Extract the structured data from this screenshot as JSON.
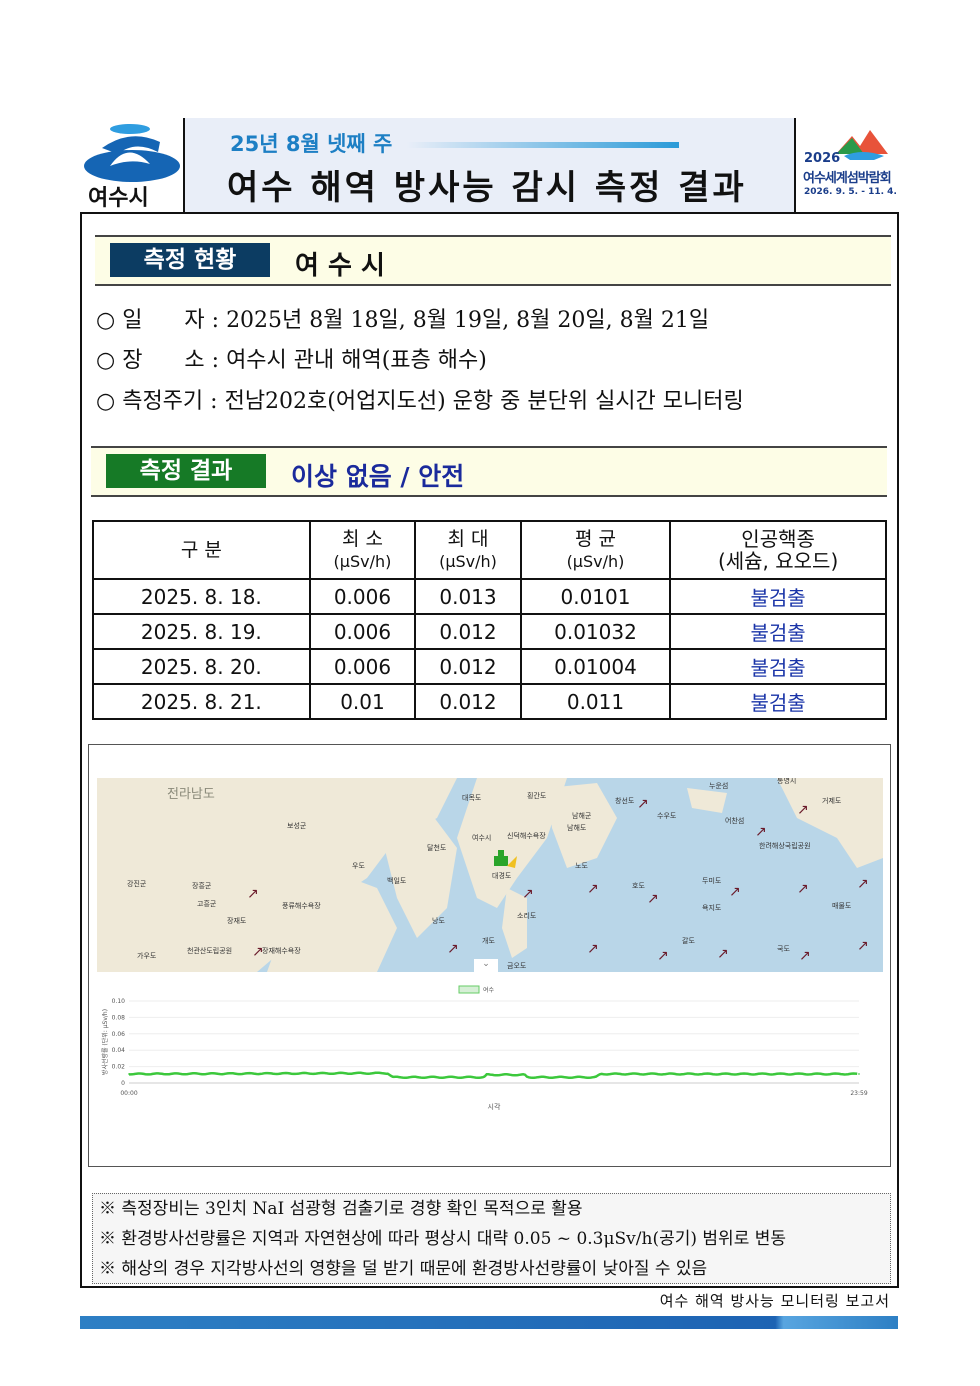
{
  "header": {
    "logo_text": "여수시",
    "subtitle": "25년 8월 넷째 주",
    "title": "여수 해역 방사능 감시 측정 결과",
    "expo_year": "2026",
    "expo_name": "여수세계섬박람회",
    "expo_dates": "2026. 9. 5. - 11. 4."
  },
  "status": {
    "label": "측정 현황",
    "city": "여 수 시",
    "items": [
      {
        "bullet": "○",
        "key": "일      자",
        "value": "2025년 8월 18일, 8월 19일, 8월 20일, 8월 21일"
      },
      {
        "bullet": "○",
        "key": "장      소",
        "value": "여수시 관내 해역(표층 해수)"
      },
      {
        "bullet": "○",
        "key": "측정주기",
        "value": "전남202호(어업지도선) 운항 중 분단위 실시간 모니터링"
      }
    ]
  },
  "result": {
    "label": "측정 결과",
    "summary": "이상 없음 / 안전"
  },
  "table": {
    "headers": [
      {
        "t": "구 분",
        "u": ""
      },
      {
        "t": "최 소",
        "u": "(μSv/h)"
      },
      {
        "t": "최 대",
        "u": "(μSv/h)"
      },
      {
        "t": "평 균",
        "u": "(μSv/h)"
      },
      {
        "t": "인공핵종",
        "u": "(세슘, 요오드)"
      }
    ],
    "rows": [
      [
        "2025. 8. 18.",
        "0.006",
        "0.013",
        "0.0101",
        "불검출"
      ],
      [
        "2025. 8. 19.",
        "0.006",
        "0.012",
        "0.01032",
        "불검출"
      ],
      [
        "2025. 8. 20.",
        "0.006",
        "0.012",
        "0.01004",
        "불검출"
      ],
      [
        "2025. 8. 21.",
        "0.01",
        "0.012",
        "0.011",
        "불검출"
      ]
    ]
  },
  "map": {
    "labels": [
      "전라남도",
      "보성군",
      "장흥군",
      "강진군",
      "고흥군",
      "우도",
      "백일도",
      "대목도",
      "여수시",
      "신덕해수욕장",
      "달천도",
      "대경도",
      "금오도",
      "남해군",
      "남해도",
      "창선도",
      "수우도",
      "노도",
      "호도",
      "두미도",
      "욕지도",
      "갈도",
      "국도",
      "거제도",
      "통영시",
      "매물도",
      "한려해상국립공원",
      "장재도",
      "가우도",
      "천관산도립공원",
      "풍류해수욕장",
      "장재해수욕장",
      "낭도",
      "개도",
      "소리도",
      "횡간도",
      "누운섬",
      "어찬섬"
    ],
    "ship_icon": "ship-icon",
    "arrow": "↗"
  },
  "chart_data": {
    "type": "line",
    "legend": [
      "여수"
    ],
    "legend_position": "top",
    "ylabel": "방사선량률 (단위: μSv/h)",
    "xlabel": "시각",
    "x_ticks": [
      "00:00",
      "23:59"
    ],
    "y_ticks": [
      "0",
      "0.02",
      "0.04",
      "0.06",
      "0.08",
      "0.10"
    ],
    "ylim": [
      0,
      0.1
    ],
    "grid": true,
    "color": "#3cc83c",
    "series": [
      {
        "name": "여수",
        "points": [
          [
            "00:00",
            0.011
          ],
          [
            "08:30",
            0.012
          ],
          [
            "08:40",
            0.007
          ],
          [
            "11:40",
            0.007
          ],
          [
            "11:45",
            0.01
          ],
          [
            "13:00",
            0.01
          ],
          [
            "13:05",
            0.007
          ],
          [
            "15:20",
            0.007
          ],
          [
            "15:30",
            0.011
          ],
          [
            "23:59",
            0.011
          ]
        ]
      }
    ]
  },
  "notes": [
    "※  측정장비는 3인치 NaI 섬광형 검출기로 경향 확인 목적으로 활용",
    "※  환경방사선량률은 지역과 자연현상에 따라 평상시 대략 0.05 ~ 0.3μSv/h(공기) 범위로 변동",
    "※  해상의 경우 지각방사선의 영향을 덜 받기 때문에 환경방사선량률이 낮아질 수 있음"
  ],
  "footer": "여수 해역 방사능 모니터링 보고서"
}
